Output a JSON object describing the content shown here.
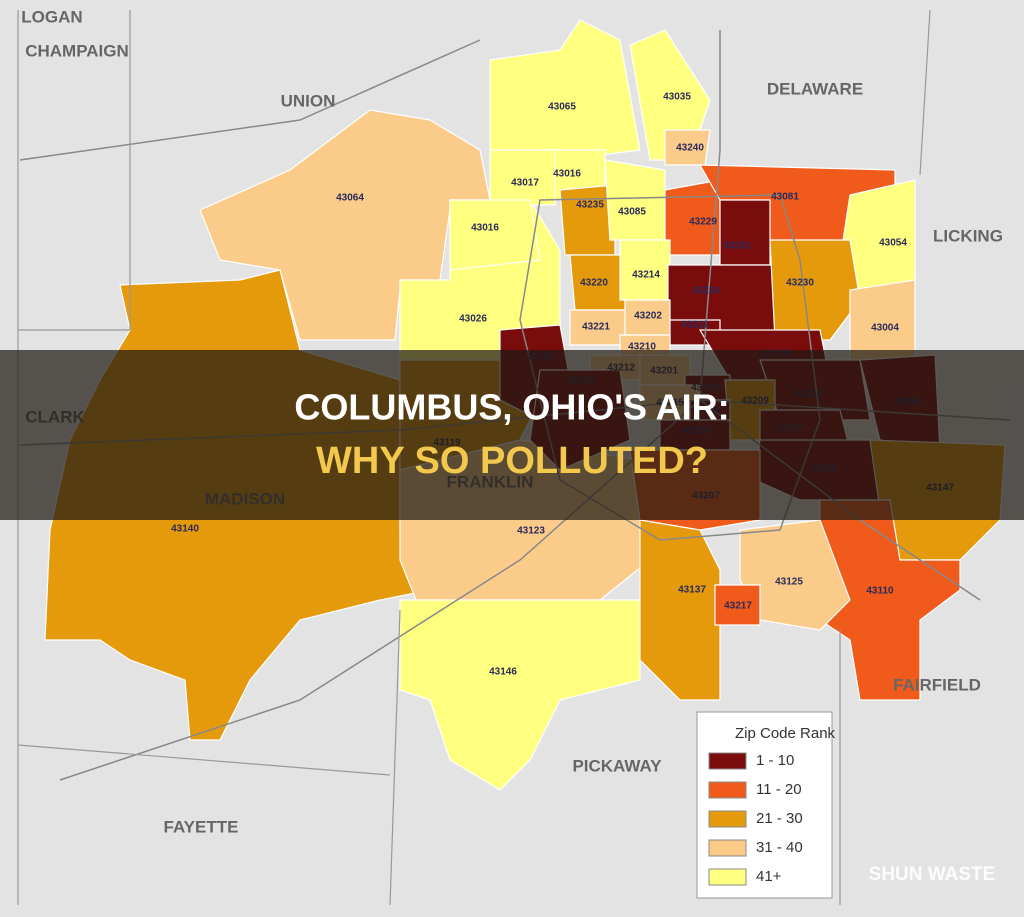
{
  "title": {
    "line1": "COLUMBUS, OHIO'S AIR:",
    "line2": "WHY SO POLLUTED?"
  },
  "watermark": "SHUN WASTE",
  "counties": [
    "LOGAN",
    "CHAMPAIGN",
    "UNION",
    "DELAWARE",
    "LICKING",
    "CLARK",
    "MADISON",
    "FRANKLIN",
    "PICKAWAY",
    "FAYETTE",
    "FAIRFIELD"
  ],
  "legend": {
    "title": "Zip Code Rank",
    "items": [
      {
        "label": "1 - 10",
        "color": "#7a0c0c"
      },
      {
        "label": "11 - 20",
        "color": "#f05a1a"
      },
      {
        "label": "21 - 30",
        "color": "#e59a0c"
      },
      {
        "label": "31 - 40",
        "color": "#fbcb8a"
      },
      {
        "label": "41+",
        "color": "#ffff80"
      }
    ]
  },
  "zips": [
    {
      "label": "43140",
      "color": "#e59a0c"
    },
    {
      "label": "43064",
      "color": "#fbcb8a"
    },
    {
      "label": "43026",
      "color": "#ffff80"
    },
    {
      "label": "43119",
      "color": "#e59a0c"
    },
    {
      "label": "43123",
      "color": "#fbcb8a"
    },
    {
      "label": "43146",
      "color": "#ffff80"
    },
    {
      "label": "43065",
      "color": "#ffff80"
    },
    {
      "label": "43035",
      "color": "#ffff80"
    },
    {
      "label": "43240",
      "color": "#fbcb8a"
    },
    {
      "label": "43017",
      "color": "#ffff80"
    },
    {
      "label": "43016",
      "color": "#ffff80"
    },
    {
      "label": "43016",
      "color": "#ffff80"
    },
    {
      "label": "43235",
      "color": "#e59a0c"
    },
    {
      "label": "43085",
      "color": "#ffff80"
    },
    {
      "label": "43229",
      "color": "#f05a1a"
    },
    {
      "label": "43081",
      "color": "#f05a1a"
    },
    {
      "label": "43054",
      "color": "#ffff80"
    },
    {
      "label": "43231",
      "color": "#7a0c0c"
    },
    {
      "label": "43220",
      "color": "#e59a0c"
    },
    {
      "label": "43214",
      "color": "#ffff80"
    },
    {
      "label": "43224",
      "color": "#7a0c0c"
    },
    {
      "label": "43230",
      "color": "#e59a0c"
    },
    {
      "label": "43004",
      "color": "#fbcb8a"
    },
    {
      "label": "43221",
      "color": "#fbcb8a"
    },
    {
      "label": "43202",
      "color": "#fbcb8a"
    },
    {
      "label": "43211",
      "color": "#7a0c0c"
    },
    {
      "label": "43210",
      "color": "#fbcb8a"
    },
    {
      "label": "43219",
      "color": "#7a0c0c"
    },
    {
      "label": "43228",
      "color": "#7a0c0c"
    },
    {
      "label": "43212",
      "color": "#fbcb8a"
    },
    {
      "label": "43201",
      "color": "#fbcb8a"
    },
    {
      "label": "43204",
      "color": "#7a0c0c"
    },
    {
      "label": "43203",
      "color": "#7a0c0c"
    },
    {
      "label": "43213",
      "color": "#7a0c0c"
    },
    {
      "label": "43068",
      "color": "#7a0c0c"
    },
    {
      "label": "43215",
      "color": "#fbcb8a"
    },
    {
      "label": "43209",
      "color": "#e59a0c"
    },
    {
      "label": "43205",
      "color": "#7a0c0c"
    },
    {
      "label": "43227",
      "color": "#7a0c0c"
    },
    {
      "label": "43206",
      "color": "#7a0c0c"
    },
    {
      "label": "43232",
      "color": "#7a0c0c"
    },
    {
      "label": "43147",
      "color": "#e59a0c"
    },
    {
      "label": "43207",
      "color": "#f05a1a"
    },
    {
      "label": "43110",
      "color": "#f05a1a"
    },
    {
      "label": "43137",
      "color": "#e59a0c"
    },
    {
      "label": "43125",
      "color": "#fbcb8a"
    },
    {
      "label": "43217",
      "color": "#f05a1a"
    }
  ]
}
